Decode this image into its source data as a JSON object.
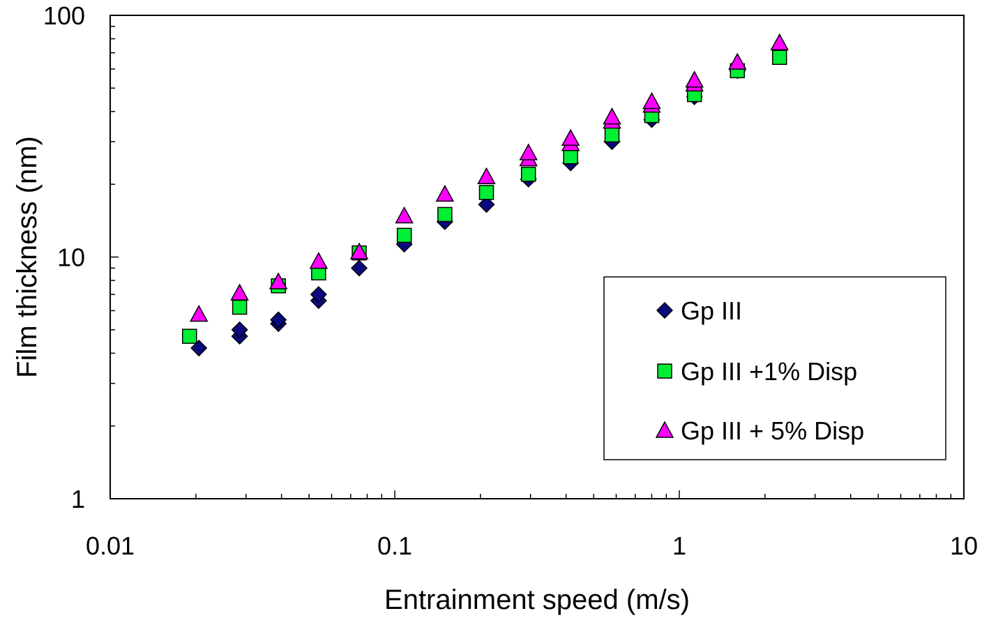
{
  "chart_data": {
    "type": "scatter",
    "xscale": "log",
    "yscale": "log",
    "xlabel": "Entrainment speed (m/s)",
    "ylabel": "Film thickness (nm)",
    "xlim": [
      0.01,
      10
    ],
    "ylim": [
      1,
      100
    ],
    "x_tick_labels": [
      "0.01",
      "0.1",
      "1",
      "10"
    ],
    "y_tick_labels": [
      "1",
      "10",
      "100"
    ],
    "grid": false,
    "legend_position": "center-right",
    "series": [
      {
        "name": "Gp III",
        "marker": "diamond",
        "color": "#0a0a80",
        "points": [
          [
            0.0205,
            4.2
          ],
          [
            0.0285,
            4.7
          ],
          [
            0.0285,
            5.0
          ],
          [
            0.039,
            5.3
          ],
          [
            0.039,
            5.5
          ],
          [
            0.054,
            6.6
          ],
          [
            0.054,
            7.0
          ],
          [
            0.075,
            9.0
          ],
          [
            0.108,
            11.3
          ],
          [
            0.15,
            14.0
          ],
          [
            0.21,
            16.5
          ],
          [
            0.295,
            21.0
          ],
          [
            0.415,
            24.5
          ],
          [
            0.58,
            30.0
          ],
          [
            0.8,
            37.0
          ],
          [
            1.13,
            46.0
          ],
          [
            1.6,
            59.0
          ]
        ]
      },
      {
        "name": "Gp III +1% Disp",
        "marker": "square",
        "color": "#00ee33",
        "points": [
          [
            0.019,
            4.7
          ],
          [
            0.0285,
            6.2
          ],
          [
            0.039,
            7.6
          ],
          [
            0.054,
            8.6
          ],
          [
            0.075,
            10.4
          ],
          [
            0.108,
            12.3
          ],
          [
            0.15,
            15.0
          ],
          [
            0.21,
            18.5
          ],
          [
            0.295,
            22.0
          ],
          [
            0.415,
            26.0
          ],
          [
            0.58,
            32.0
          ],
          [
            0.8,
            38.5
          ],
          [
            1.13,
            47.0
          ],
          [
            1.6,
            59.0
          ],
          [
            2.25,
            67.0
          ]
        ]
      },
      {
        "name": "Gp III + 5% Disp",
        "marker": "triangle",
        "color": "#ff00ff",
        "points": [
          [
            0.0205,
            5.8
          ],
          [
            0.0285,
            7.1
          ],
          [
            0.039,
            7.9
          ],
          [
            0.054,
            9.6
          ],
          [
            0.075,
            10.5
          ],
          [
            0.108,
            14.8
          ],
          [
            0.15,
            18.2
          ],
          [
            0.21,
            21.5
          ],
          [
            0.295,
            25.5
          ],
          [
            0.295,
            27.0
          ],
          [
            0.415,
            29.5
          ],
          [
            0.415,
            31.0
          ],
          [
            0.58,
            36.5
          ],
          [
            0.58,
            38.0
          ],
          [
            0.8,
            42.5
          ],
          [
            0.8,
            44.0
          ],
          [
            1.13,
            52.0
          ],
          [
            1.13,
            54.0
          ],
          [
            1.6,
            64.0
          ],
          [
            2.25,
            77.0
          ]
        ]
      }
    ]
  }
}
